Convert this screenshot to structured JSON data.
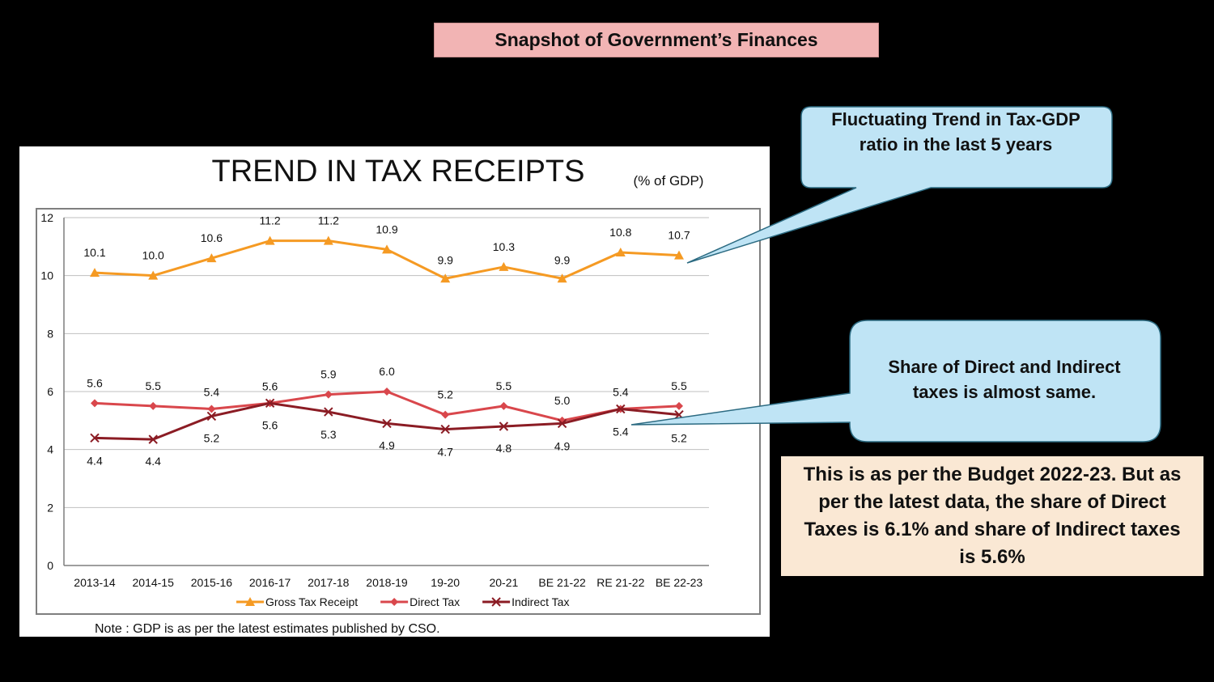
{
  "header": {
    "title": "Snapshot of Government’s Finances"
  },
  "chart_data": {
    "type": "line",
    "title": "TREND IN TAX RECEIPTS",
    "unit_label": "(% of GDP)",
    "categories": [
      "2013-14",
      "2014-15",
      "2015-16",
      "2016-17",
      "2017-18",
      "2018-19",
      "19-20",
      "20-21",
      "BE 21-22",
      "RE 21-22",
      "BE 22-23"
    ],
    "ylim": [
      0,
      12
    ],
    "yticks": [
      0,
      2,
      4,
      6,
      8,
      10,
      12
    ],
    "grid": true,
    "legend_position": "bottom",
    "series": [
      {
        "name": "Gross Tax Receipt",
        "color": "#f59a23",
        "marker": "triangle",
        "values": [
          10.1,
          10.0,
          10.6,
          11.2,
          11.2,
          10.9,
          9.9,
          10.3,
          9.9,
          10.8,
          10.7
        ],
        "labels": [
          "10.1",
          "10.0",
          "10.6",
          "11.2",
          "11.2",
          "10.9",
          "9.9",
          "10.3",
          "9.9",
          "10.8",
          "10.7"
        ]
      },
      {
        "name": "Direct Tax",
        "color": "#d9474c",
        "marker": "diamond",
        "values": [
          5.6,
          5.5,
          5.4,
          5.6,
          5.9,
          6.0,
          5.2,
          5.5,
          5.0,
          5.4,
          5.5
        ],
        "labels": [
          "5.6",
          "5.5",
          "5.4",
          "5.6",
          "5.9",
          "6.0",
          "5.2",
          "5.5",
          "5.0",
          "5.4",
          "5.5"
        ]
      },
      {
        "name": "Indirect Tax",
        "color": "#8b1c24",
        "marker": "x",
        "values": [
          4.4,
          4.35,
          5.15,
          5.6,
          5.3,
          4.9,
          4.7,
          4.8,
          4.9,
          5.4,
          5.2
        ],
        "labels": [
          "4.4",
          "4.4",
          "5.2",
          "5.6",
          "5.3",
          "4.9",
          "4.7",
          "4.8",
          "4.9",
          "5.4",
          "5.2"
        ]
      }
    ],
    "note": "Note : GDP is as per the latest estimates published by CSO."
  },
  "callouts": {
    "tax_gdp": "Fluctuating Trend in Tax-GDP ratio in the last 5 years",
    "share": "Share of Direct and Indirect taxes is almost same."
  },
  "budget_note": "This is as per the Budget 2022-23. But as per the latest data, the share of Direct Taxes is 6.1% and share of Indirect taxes is 5.6%"
}
